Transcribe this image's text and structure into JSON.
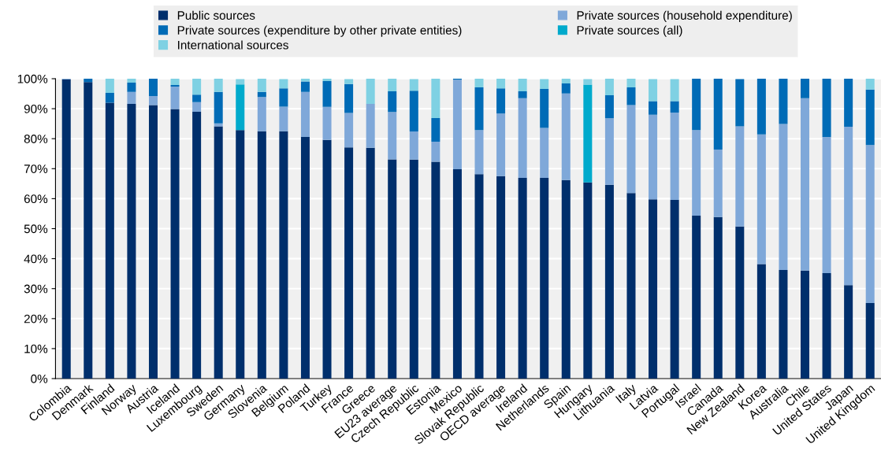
{
  "chart_data": {
    "type": "bar",
    "stacked": true,
    "categories": [
      "Colombia",
      "Denmark",
      "Finland",
      "Norway",
      "Austria",
      "Iceland",
      "Luxembourg",
      "Sweden",
      "Germany",
      "Slovenia",
      "Belgium",
      "Poland",
      "Turkey",
      "France",
      "Greece",
      "EU23 average",
      "Czech Republic",
      "Estonia",
      "Mexico",
      "Slovak Republic",
      "OECD average",
      "Ireland",
      "Netherlands",
      "Spain",
      "Hungary",
      "Lithuania",
      "Italy",
      "Latvia",
      "Portugal",
      "Israel",
      "Canada",
      "New Zealand",
      "Korea",
      "Australia",
      "Chile",
      "United States",
      "Japan",
      "United Kingdom"
    ],
    "series": [
      {
        "name": "Public sources",
        "color": "#002f6c",
        "values": [
          99.8,
          98.9,
          92.0,
          91.6,
          91.2,
          89.9,
          89.0,
          84.1,
          82.9,
          82.5,
          82.5,
          80.6,
          79.6,
          77.1,
          77.0,
          73.1,
          73.0,
          72.3,
          69.8,
          68.2,
          67.5,
          66.9,
          66.9,
          66.2,
          65.4,
          64.6,
          61.9,
          59.8,
          59.6,
          54.3,
          53.9,
          50.7,
          38.2,
          36.2,
          36.0,
          35.2,
          31.2,
          25.2
        ]
      },
      {
        "name": "Private sources (household expenditure)",
        "color": "#7fa8d9",
        "values": [
          0.2,
          null,
          null,
          4.0,
          3.0,
          7.5,
          3.2,
          1.0,
          null,
          11.4,
          8.2,
          15.0,
          11.0,
          11.5,
          14.6,
          15.8,
          9.4,
          6.7,
          29.9,
          14.7,
          20.9,
          26.6,
          16.7,
          28.9,
          null,
          22.2,
          29.3,
          28.2,
          29.1,
          28.6,
          22.5,
          33.4,
          43.2,
          48.7,
          57.5,
          45.4,
          52.8,
          52.7
        ]
      },
      {
        "name": "Private sources (expenditure by other private entities)",
        "color": "#006bb6",
        "values": [
          null,
          1.1,
          3.3,
          3.1,
          5.9,
          0.5,
          2.5,
          10.5,
          null,
          1.7,
          6.1,
          3.5,
          8.6,
          9.6,
          null,
          6.9,
          13.6,
          7.9,
          0.3,
          14.2,
          8.4,
          2.3,
          13.0,
          3.3,
          null,
          7.7,
          5.9,
          4.5,
          3.8,
          17.1,
          23.6,
          15.8,
          18.6,
          15.1,
          6.5,
          19.4,
          16.0,
          18.5
        ]
      },
      {
        "name": "Private sources (all)",
        "color": "#00aacc",
        "values": [
          null,
          null,
          null,
          null,
          null,
          null,
          null,
          null,
          15.2,
          null,
          null,
          null,
          null,
          null,
          null,
          null,
          null,
          null,
          null,
          null,
          null,
          null,
          null,
          null,
          32.6,
          null,
          null,
          null,
          null,
          null,
          null,
          null,
          null,
          null,
          null,
          null,
          null,
          null
        ]
      },
      {
        "name": "International sources",
        "color": "#7fd1e3",
        "values": [
          null,
          null,
          4.7,
          1.3,
          null,
          2.1,
          5.3,
          4.4,
          1.8,
          4.4,
          3.1,
          1.0,
          0.8,
          1.7,
          8.4,
          4.2,
          3.9,
          13.1,
          null,
          2.9,
          3.2,
          4.2,
          3.3,
          1.6,
          1.9,
          5.5,
          3.0,
          7.4,
          7.4,
          null,
          null,
          null,
          null,
          null,
          null,
          null,
          null,
          3.7
        ]
      }
    ],
    "ylim": [
      0,
      100
    ],
    "yticks": [
      {
        "value": 0,
        "label": "0%"
      },
      {
        "value": 10,
        "label": "10%"
      },
      {
        "value": 20,
        "label": "20%"
      },
      {
        "value": 30,
        "label": "30%"
      },
      {
        "value": 40,
        "label": "40%"
      },
      {
        "value": 50,
        "label": "50%"
      },
      {
        "value": 60,
        "label": "60%"
      },
      {
        "value": 70,
        "label": "70%"
      },
      {
        "value": 80,
        "label": "80%"
      },
      {
        "value": 90,
        "label": "90%"
      },
      {
        "value": 100,
        "label": "100%"
      }
    ],
    "grid": "y",
    "legend": "top"
  }
}
